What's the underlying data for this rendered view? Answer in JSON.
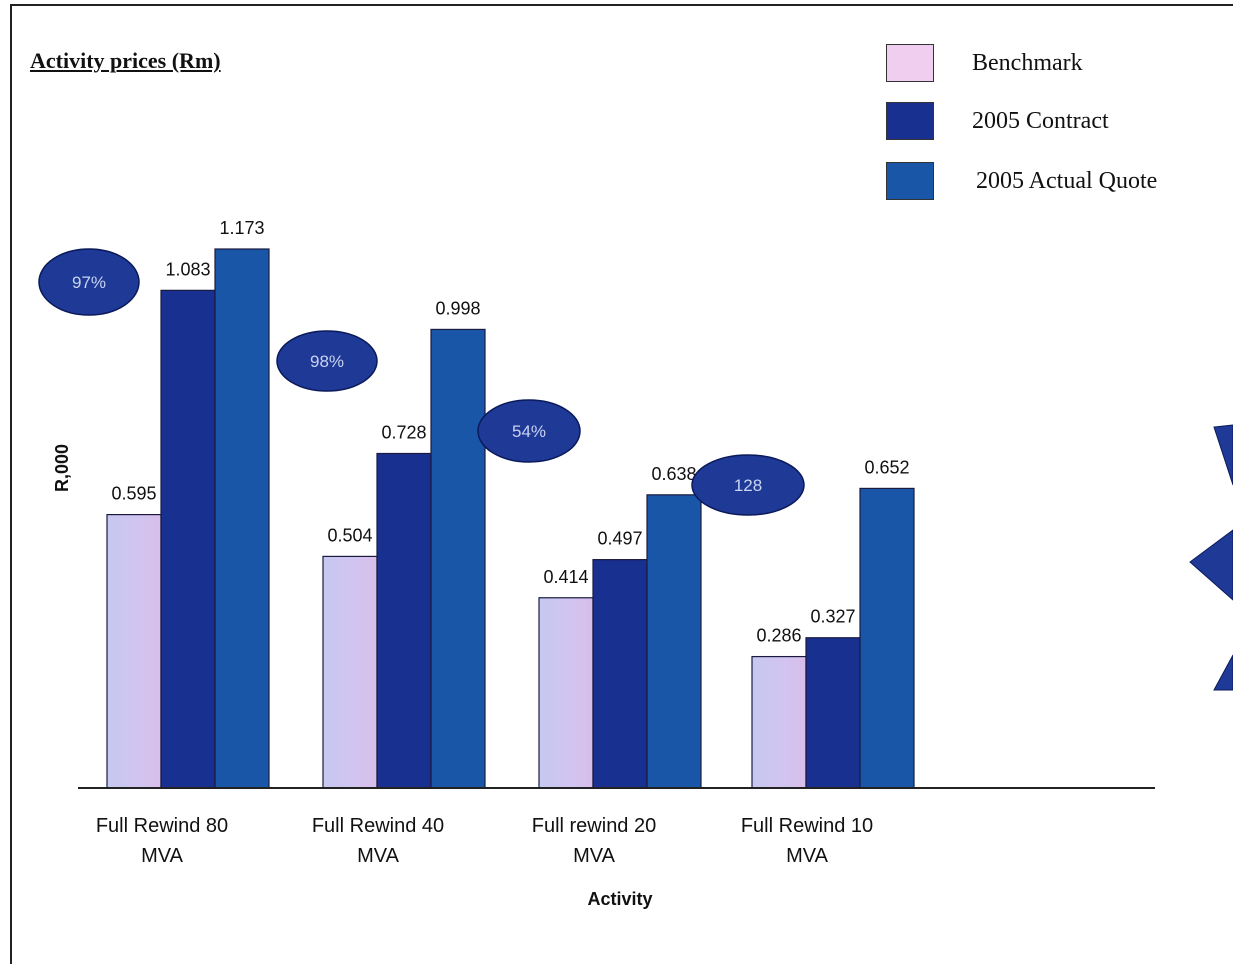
{
  "chart_data": {
    "type": "bar",
    "title": "Activity prices (Rm)",
    "xlabel": "Activity",
    "ylabel": "R,000",
    "categories": [
      [
        "Full Rewind 80",
        "MVA"
      ],
      [
        "Full Rewind 40",
        "MVA"
      ],
      [
        "Full rewind 20",
        "MVA"
      ],
      [
        "Full Rewind 10",
        "MVA"
      ]
    ],
    "series": [
      {
        "name": "Benchmark",
        "color": "#c8c3ee",
        "values": [
          0.595,
          0.504,
          0.414,
          0.286
        ]
      },
      {
        "name": "2005 Contract",
        "color": "#18308f",
        "values": [
          1.083,
          0.728,
          0.497,
          0.327
        ]
      },
      {
        "name": "2005 Actual Quote",
        "color": "#1a56a8",
        "values": [
          1.173,
          0.998,
          0.638,
          0.652
        ]
      }
    ],
    "value_labels": [
      [
        "0.595",
        "0.504",
        "0.414",
        "0.286"
      ],
      [
        "1.083",
        "0.728",
        "0.497",
        "0.327"
      ],
      [
        "1.173",
        "0.998",
        "0.638",
        "0.652"
      ]
    ],
    "ylim": [
      0,
      1.173
    ],
    "grid": false,
    "legend_position": "top-right",
    "annotations": [
      "97%",
      "98%",
      "54%",
      "128"
    ],
    "annotation_color": "#1f3996"
  }
}
